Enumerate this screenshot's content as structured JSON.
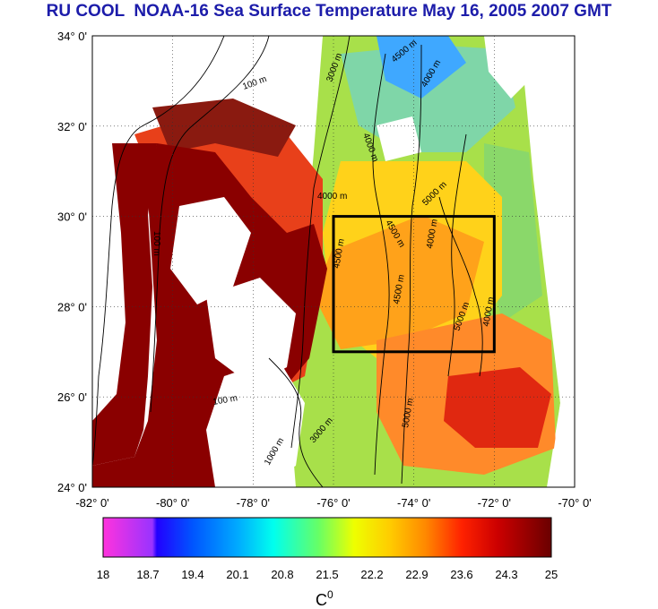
{
  "title": "RU COOL  NOAA-16 Sea Surface Temperature May 16, 2005 2007 GMT",
  "map": {
    "lon_range": [
      -82,
      -70
    ],
    "lat_range": [
      24,
      34
    ],
    "lat_ticks": [
      "34° 0'",
      "32° 0'",
      "30° 0'",
      "28° 0'",
      "26° 0'",
      "24° 0'"
    ],
    "lon_ticks": [
      "-82° 0'",
      "-80° 0'",
      "-78° 0'",
      "-76° 0'",
      "-74° 0'",
      "-72° 0'",
      "-70° 0'"
    ],
    "grid": "dotted",
    "study_box": {
      "lon": [
        -76,
        -72
      ],
      "lat": [
        27,
        30
      ]
    },
    "contour_labels": [
      "100 m",
      "3000 m",
      "4500 m",
      "4000 m",
      "4000 m",
      "5000 m",
      "4000 m",
      "4500 m",
      "4500 m",
      "4000 m",
      "4500 m",
      "5000 m",
      "4000 m",
      "5000 m",
      "100 m",
      "100 m",
      "3000 m",
      "1000 m"
    ]
  },
  "colorbar": {
    "ticks": [
      "18",
      "18.7",
      "19.4",
      "20.1",
      "20.8",
      "21.5",
      "22.2",
      "22.9",
      "23.6",
      "24.3",
      "25"
    ],
    "unit": "C",
    "unit_sup": "0",
    "colors": [
      "#ff33dd",
      "#3322ff",
      "#0033ff",
      "#0099ff",
      "#00ffee",
      "#55ff77",
      "#ddff22",
      "#ffee00",
      "#ffaa00",
      "#ff5500",
      "#ee0000",
      "#7a0000"
    ]
  }
}
